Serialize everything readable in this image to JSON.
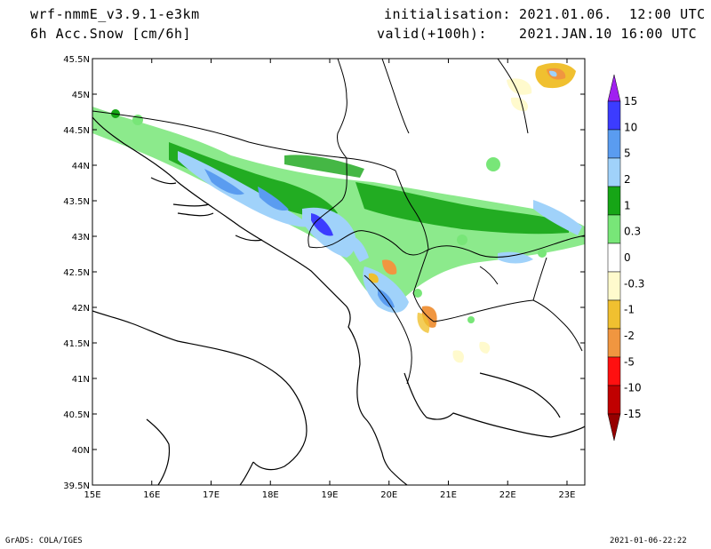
{
  "header": {
    "model": "wrf-nmmE_v3.9.1-e3km",
    "field": "6h Acc.Snow [cm/6h]",
    "init_label": "initialisation:",
    "init_value": "2021.01.06.  12:00 UTC",
    "valid_label": "valid(+100h):",
    "valid_value": "2021.JAN.10 16:00 UTC"
  },
  "map": {
    "lon_ticks": [
      "15E",
      "16E",
      "17E",
      "18E",
      "19E",
      "20E",
      "21E",
      "22E",
      "23E"
    ],
    "lat_ticks": [
      "45.5N",
      "45N",
      "44.5N",
      "44N",
      "43.5N",
      "43N",
      "42.5N",
      "42N",
      "41.5N",
      "41N",
      "40.5N",
      "40N",
      "39.5N"
    ],
    "lon_range": [
      15,
      23.3
    ],
    "lat_range": [
      39.5,
      45.5
    ]
  },
  "colorbar": {
    "labels": [
      "15",
      "10",
      "5",
      "2",
      "1",
      "0.3",
      "0",
      "-0.3",
      "-1",
      "-2",
      "-5",
      "-10",
      "-15"
    ],
    "colors": [
      "#a020f0",
      "#3c3cff",
      "#5a9cf0",
      "#a0d2fa",
      "#16a516",
      "#78e678",
      "#ffffff",
      "#fffacd",
      "#f0c030",
      "#f09640",
      "#ff1010",
      "#c00000",
      "#960000"
    ]
  },
  "footer": {
    "left": "GrADS: COLA/IGES",
    "right": "2021-01-06-22:22"
  }
}
